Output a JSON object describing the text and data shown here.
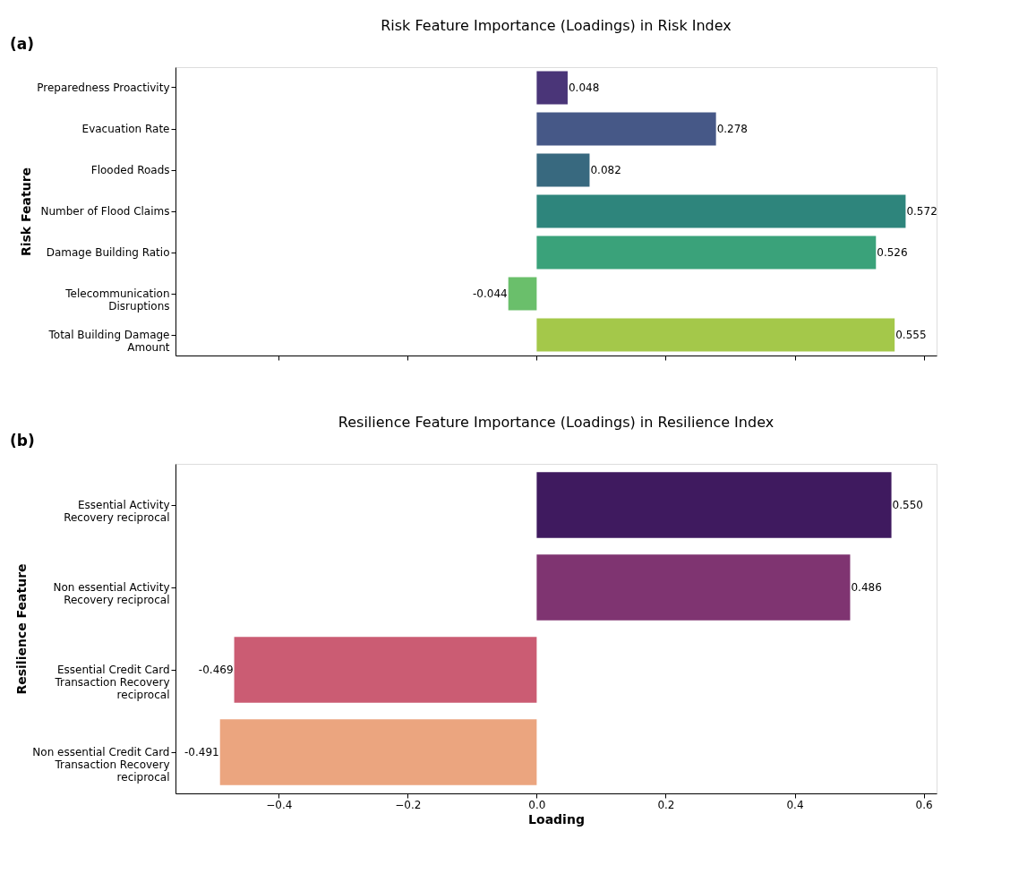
{
  "chart_data": [
    {
      "type": "bar",
      "orientation": "horizontal",
      "title": "Risk Feature Importance (Loadings) in Risk Index",
      "ylabel": "Risk Feature",
      "annotations": [
        "(a)"
      ],
      "categories": [
        "Preparedness Proactivity",
        "Evacuation Rate",
        "Flooded Roads",
        "Number of Flood Claims",
        "Damage Building Ratio",
        "Telecommunication\nDisruptions",
        "Total Building Damage\nAmount"
      ],
      "values": [
        0.048,
        0.278,
        0.082,
        0.572,
        0.526,
        -0.044,
        0.555
      ],
      "value_labels": [
        "0.048",
        "0.278",
        "0.082",
        "0.572",
        "0.526",
        "-0.044",
        "0.555"
      ],
      "colors": [
        "#4a3578",
        "#465887",
        "#38697f",
        "#2e857c",
        "#3aa27a",
        "#6abf6b",
        "#a4c84a"
      ],
      "xlim": [
        -0.56,
        0.62
      ],
      "xticks": [
        {
          "value": -0.4,
          "label": null
        },
        {
          "value": -0.2,
          "label": null
        },
        {
          "value": 0.0,
          "label": null
        },
        {
          "value": 0.2,
          "label": null
        },
        {
          "value": 0.4,
          "label": null
        },
        {
          "value": 0.6,
          "label": null
        }
      ],
      "tick_labels": "y",
      "grid": false
    },
    {
      "type": "bar",
      "orientation": "horizontal",
      "title": "Resilience Feature Importance (Loadings) in Resilience Index",
      "ylabel": "Resilience Feature",
      "xlabel": "Loading",
      "annotations": [
        "(b)"
      ],
      "categories": [
        "Essential Activity\nRecovery reciprocal",
        "Non essential Activity\nRecovery reciprocal",
        "Essential Credit Card\nTransaction Recovery\nreciprocal",
        "Non essential Credit Card\nTransaction Recovery\nreciprocal"
      ],
      "values": [
        0.55,
        0.486,
        -0.469,
        -0.491
      ],
      "value_labels": [
        "0.550",
        "0.486",
        "-0.469",
        "-0.491"
      ],
      "colors": [
        "#3f1a5f",
        "#7f3471",
        "#cb5c73",
        "#eba57f"
      ],
      "xlim": [
        -0.56,
        0.62
      ],
      "xticks": [
        {
          "value": -0.4,
          "label": "−0.4"
        },
        {
          "value": -0.2,
          "label": "−0.2"
        },
        {
          "value": 0.0,
          "label": "0.0"
        },
        0.2,
        0.4,
        0.6
      ],
      "grid": false
    }
  ]
}
